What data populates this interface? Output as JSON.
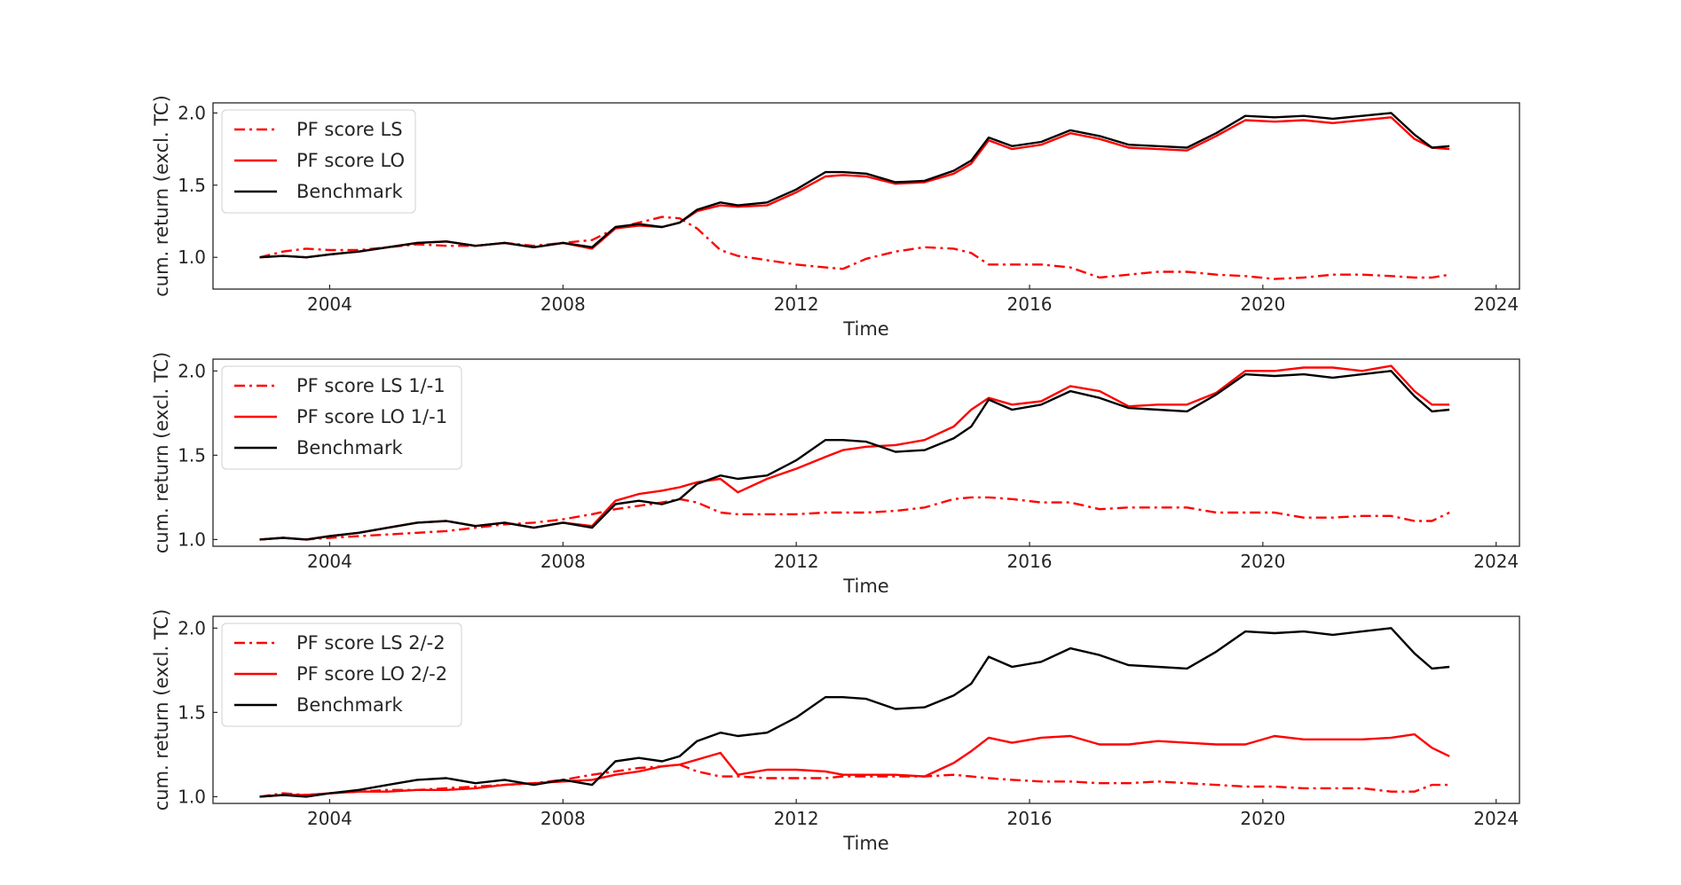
{
  "chart_data": [
    {
      "type": "line",
      "xlabel": "Time",
      "ylabel": "cum. return (excl. TC)",
      "xlim": [
        2002.0,
        2024.4
      ],
      "ylim": [
        0.78,
        2.07
      ],
      "xticks": [
        2004,
        2008,
        2012,
        2016,
        2020,
        2024
      ],
      "yticks": [
        1.0,
        1.5,
        2.0
      ],
      "grid": false,
      "legend": "upper left",
      "series": [
        {
          "name": "PF score LS",
          "color": "#ff0000",
          "style": "dashdot",
          "x": [
            2002.8,
            2003.2,
            2003.6,
            2004.0,
            2004.5,
            2005.0,
            2005.5,
            2006.0,
            2006.5,
            2007.0,
            2007.5,
            2008.0,
            2008.5,
            2008.9,
            2009.3,
            2009.7,
            2010.0,
            2010.3,
            2010.7,
            2011.0,
            2011.5,
            2012.0,
            2012.5,
            2012.8,
            2013.2,
            2013.7,
            2014.2,
            2014.7,
            2015.0,
            2015.3,
            2015.7,
            2016.2,
            2016.7,
            2017.2,
            2017.7,
            2018.2,
            2018.7,
            2019.2,
            2019.7,
            2020.2,
            2020.7,
            2021.2,
            2021.7,
            2022.2,
            2022.6,
            2022.9,
            2023.2
          ],
          "values": [
            1.0,
            1.04,
            1.06,
            1.05,
            1.05,
            1.07,
            1.09,
            1.08,
            1.08,
            1.1,
            1.08,
            1.1,
            1.12,
            1.2,
            1.24,
            1.28,
            1.27,
            1.2,
            1.05,
            1.01,
            0.98,
            0.95,
            0.93,
            0.92,
            0.99,
            1.04,
            1.07,
            1.06,
            1.03,
            0.95,
            0.95,
            0.95,
            0.93,
            0.86,
            0.88,
            0.9,
            0.9,
            0.88,
            0.87,
            0.85,
            0.86,
            0.88,
            0.88,
            0.87,
            0.86,
            0.86,
            0.88
          ]
        },
        {
          "name": "PF score LO",
          "color": "#ff0000",
          "style": "solid",
          "x": [
            2002.8,
            2003.2,
            2003.6,
            2004.0,
            2004.5,
            2005.0,
            2005.5,
            2006.0,
            2006.5,
            2007.0,
            2007.5,
            2008.0,
            2008.5,
            2008.9,
            2009.3,
            2009.7,
            2010.0,
            2010.3,
            2010.7,
            2011.0,
            2011.5,
            2012.0,
            2012.5,
            2012.8,
            2013.2,
            2013.7,
            2014.2,
            2014.7,
            2015.0,
            2015.3,
            2015.7,
            2016.2,
            2016.7,
            2017.2,
            2017.7,
            2018.2,
            2018.7,
            2019.2,
            2019.7,
            2020.2,
            2020.7,
            2021.2,
            2021.7,
            2022.2,
            2022.6,
            2022.9,
            2023.2
          ],
          "values": [
            1.0,
            1.01,
            1.0,
            1.02,
            1.04,
            1.07,
            1.1,
            1.11,
            1.08,
            1.1,
            1.07,
            1.1,
            1.06,
            1.2,
            1.22,
            1.21,
            1.24,
            1.32,
            1.36,
            1.35,
            1.36,
            1.45,
            1.56,
            1.57,
            1.56,
            1.51,
            1.52,
            1.58,
            1.65,
            1.81,
            1.75,
            1.78,
            1.86,
            1.82,
            1.76,
            1.75,
            1.74,
            1.84,
            1.95,
            1.94,
            1.95,
            1.93,
            1.95,
            1.97,
            1.82,
            1.76,
            1.75
          ]
        },
        {
          "name": "Benchmark",
          "color": "#000000",
          "style": "solid",
          "x": [
            2002.8,
            2003.2,
            2003.6,
            2004.0,
            2004.5,
            2005.0,
            2005.5,
            2006.0,
            2006.5,
            2007.0,
            2007.5,
            2008.0,
            2008.5,
            2008.9,
            2009.3,
            2009.7,
            2010.0,
            2010.3,
            2010.7,
            2011.0,
            2011.5,
            2012.0,
            2012.5,
            2012.8,
            2013.2,
            2013.7,
            2014.2,
            2014.7,
            2015.0,
            2015.3,
            2015.7,
            2016.2,
            2016.7,
            2017.2,
            2017.7,
            2018.2,
            2018.7,
            2019.2,
            2019.7,
            2020.2,
            2020.7,
            2021.2,
            2021.7,
            2022.2,
            2022.6,
            2022.9,
            2023.2
          ],
          "values": [
            1.0,
            1.01,
            1.0,
            1.02,
            1.04,
            1.07,
            1.1,
            1.11,
            1.08,
            1.1,
            1.07,
            1.1,
            1.07,
            1.21,
            1.23,
            1.21,
            1.24,
            1.33,
            1.38,
            1.36,
            1.38,
            1.47,
            1.59,
            1.59,
            1.58,
            1.52,
            1.53,
            1.6,
            1.67,
            1.83,
            1.77,
            1.8,
            1.88,
            1.84,
            1.78,
            1.77,
            1.76,
            1.86,
            1.98,
            1.97,
            1.98,
            1.96,
            1.98,
            2.0,
            1.85,
            1.76,
            1.77
          ]
        }
      ]
    },
    {
      "type": "line",
      "xlabel": "Time",
      "ylabel": "cum. return (excl. TC)",
      "xlim": [
        2002.0,
        2024.4
      ],
      "ylim": [
        0.96,
        2.07
      ],
      "xticks": [
        2004,
        2008,
        2012,
        2016,
        2020,
        2024
      ],
      "yticks": [
        1.0,
        1.5,
        2.0
      ],
      "grid": false,
      "legend": "upper left",
      "series": [
        {
          "name": "PF score LS 1/-1",
          "color": "#ff0000",
          "style": "dashdot",
          "x": [
            2002.8,
            2003.2,
            2003.6,
            2004.0,
            2004.5,
            2005.0,
            2005.5,
            2006.0,
            2006.5,
            2007.0,
            2007.5,
            2008.0,
            2008.5,
            2008.9,
            2009.3,
            2009.7,
            2010.0,
            2010.3,
            2010.7,
            2011.0,
            2011.5,
            2012.0,
            2012.5,
            2012.8,
            2013.2,
            2013.7,
            2014.2,
            2014.7,
            2015.0,
            2015.3,
            2015.7,
            2016.2,
            2016.7,
            2017.2,
            2017.7,
            2018.2,
            2018.7,
            2019.2,
            2019.7,
            2020.2,
            2020.7,
            2021.2,
            2021.7,
            2022.2,
            2022.6,
            2022.9,
            2023.2
          ],
          "values": [
            1.0,
            1.01,
            1.0,
            1.01,
            1.02,
            1.03,
            1.04,
            1.05,
            1.07,
            1.09,
            1.1,
            1.12,
            1.15,
            1.18,
            1.2,
            1.22,
            1.24,
            1.22,
            1.16,
            1.15,
            1.15,
            1.15,
            1.16,
            1.16,
            1.16,
            1.17,
            1.19,
            1.24,
            1.25,
            1.25,
            1.24,
            1.22,
            1.22,
            1.18,
            1.19,
            1.19,
            1.19,
            1.16,
            1.16,
            1.16,
            1.13,
            1.13,
            1.14,
            1.14,
            1.11,
            1.11,
            1.16
          ]
        },
        {
          "name": "PF score LO 1/-1",
          "color": "#ff0000",
          "style": "solid",
          "x": [
            2002.8,
            2003.2,
            2003.6,
            2004.0,
            2004.5,
            2005.0,
            2005.5,
            2006.0,
            2006.5,
            2007.0,
            2007.5,
            2008.0,
            2008.5,
            2008.9,
            2009.3,
            2009.7,
            2010.0,
            2010.3,
            2010.7,
            2011.0,
            2011.5,
            2012.0,
            2012.5,
            2012.8,
            2013.2,
            2013.7,
            2014.2,
            2014.7,
            2015.0,
            2015.3,
            2015.7,
            2016.2,
            2016.7,
            2017.2,
            2017.7,
            2018.2,
            2018.7,
            2019.2,
            2019.7,
            2020.2,
            2020.7,
            2021.2,
            2021.7,
            2022.2,
            2022.6,
            2022.9,
            2023.2
          ],
          "values": [
            1.0,
            1.01,
            1.0,
            1.02,
            1.04,
            1.07,
            1.1,
            1.11,
            1.08,
            1.1,
            1.07,
            1.1,
            1.08,
            1.23,
            1.27,
            1.29,
            1.31,
            1.34,
            1.36,
            1.28,
            1.36,
            1.42,
            1.49,
            1.53,
            1.55,
            1.56,
            1.59,
            1.67,
            1.77,
            1.84,
            1.8,
            1.82,
            1.91,
            1.88,
            1.79,
            1.8,
            1.8,
            1.87,
            2.0,
            2.0,
            2.02,
            2.02,
            2.0,
            2.03,
            1.88,
            1.8,
            1.8
          ]
        },
        {
          "name": "Benchmark",
          "color": "#000000",
          "style": "solid",
          "x": [
            2002.8,
            2003.2,
            2003.6,
            2004.0,
            2004.5,
            2005.0,
            2005.5,
            2006.0,
            2006.5,
            2007.0,
            2007.5,
            2008.0,
            2008.5,
            2008.9,
            2009.3,
            2009.7,
            2010.0,
            2010.3,
            2010.7,
            2011.0,
            2011.5,
            2012.0,
            2012.5,
            2012.8,
            2013.2,
            2013.7,
            2014.2,
            2014.7,
            2015.0,
            2015.3,
            2015.7,
            2016.2,
            2016.7,
            2017.2,
            2017.7,
            2018.2,
            2018.7,
            2019.2,
            2019.7,
            2020.2,
            2020.7,
            2021.2,
            2021.7,
            2022.2,
            2022.6,
            2022.9,
            2023.2
          ],
          "values": [
            1.0,
            1.01,
            1.0,
            1.02,
            1.04,
            1.07,
            1.1,
            1.11,
            1.08,
            1.1,
            1.07,
            1.1,
            1.07,
            1.21,
            1.23,
            1.21,
            1.24,
            1.33,
            1.38,
            1.36,
            1.38,
            1.47,
            1.59,
            1.59,
            1.58,
            1.52,
            1.53,
            1.6,
            1.67,
            1.83,
            1.77,
            1.8,
            1.88,
            1.84,
            1.78,
            1.77,
            1.76,
            1.86,
            1.98,
            1.97,
            1.98,
            1.96,
            1.98,
            2.0,
            1.85,
            1.76,
            1.77
          ]
        }
      ]
    },
    {
      "type": "line",
      "xlabel": "Time",
      "ylabel": "cum. return (excl. TC)",
      "xlim": [
        2002.0,
        2024.4
      ],
      "ylim": [
        0.96,
        2.07
      ],
      "xticks": [
        2004,
        2008,
        2012,
        2016,
        2020,
        2024
      ],
      "yticks": [
        1.0,
        1.5,
        2.0
      ],
      "grid": false,
      "legend": "upper left",
      "series": [
        {
          "name": "PF score LS 2/-2",
          "color": "#ff0000",
          "style": "dashdot",
          "x": [
            2002.8,
            2003.2,
            2003.6,
            2004.0,
            2004.5,
            2005.0,
            2005.5,
            2006.0,
            2006.5,
            2007.0,
            2007.5,
            2008.0,
            2008.5,
            2008.9,
            2009.3,
            2009.7,
            2010.0,
            2010.3,
            2010.7,
            2011.0,
            2011.5,
            2012.0,
            2012.5,
            2012.8,
            2013.2,
            2013.7,
            2014.2,
            2014.7,
            2015.0,
            2015.3,
            2015.7,
            2016.2,
            2016.7,
            2017.2,
            2017.7,
            2018.2,
            2018.7,
            2019.2,
            2019.7,
            2020.2,
            2020.7,
            2021.2,
            2021.7,
            2022.2,
            2022.6,
            2022.9,
            2023.2
          ],
          "values": [
            1.0,
            1.02,
            1.01,
            1.02,
            1.03,
            1.04,
            1.04,
            1.05,
            1.06,
            1.07,
            1.08,
            1.1,
            1.13,
            1.15,
            1.17,
            1.18,
            1.19,
            1.15,
            1.12,
            1.12,
            1.11,
            1.11,
            1.11,
            1.12,
            1.12,
            1.12,
            1.12,
            1.13,
            1.12,
            1.11,
            1.1,
            1.09,
            1.09,
            1.08,
            1.08,
            1.09,
            1.08,
            1.07,
            1.06,
            1.06,
            1.05,
            1.05,
            1.05,
            1.03,
            1.03,
            1.07,
            1.07
          ]
        },
        {
          "name": "PF score LO 2/-2",
          "color": "#ff0000",
          "style": "solid",
          "x": [
            2002.8,
            2003.2,
            2003.6,
            2004.0,
            2004.5,
            2005.0,
            2005.5,
            2006.0,
            2006.5,
            2007.0,
            2007.5,
            2008.0,
            2008.5,
            2008.9,
            2009.3,
            2009.7,
            2010.0,
            2010.3,
            2010.7,
            2011.0,
            2011.5,
            2012.0,
            2012.5,
            2012.8,
            2013.2,
            2013.7,
            2014.2,
            2014.7,
            2015.0,
            2015.3,
            2015.7,
            2016.2,
            2016.7,
            2017.2,
            2017.7,
            2018.2,
            2018.7,
            2019.2,
            2019.7,
            2020.2,
            2020.7,
            2021.2,
            2021.7,
            2022.2,
            2022.6,
            2022.9,
            2023.2
          ],
          "values": [
            1.0,
            1.01,
            1.01,
            1.02,
            1.03,
            1.03,
            1.04,
            1.04,
            1.05,
            1.07,
            1.08,
            1.09,
            1.1,
            1.13,
            1.15,
            1.18,
            1.19,
            1.22,
            1.26,
            1.13,
            1.16,
            1.16,
            1.15,
            1.13,
            1.13,
            1.13,
            1.12,
            1.2,
            1.27,
            1.35,
            1.32,
            1.35,
            1.36,
            1.31,
            1.31,
            1.33,
            1.32,
            1.31,
            1.31,
            1.36,
            1.34,
            1.34,
            1.34,
            1.35,
            1.37,
            1.29,
            1.24
          ]
        },
        {
          "name": "Benchmark",
          "color": "#000000",
          "style": "solid",
          "x": [
            2002.8,
            2003.2,
            2003.6,
            2004.0,
            2004.5,
            2005.0,
            2005.5,
            2006.0,
            2006.5,
            2007.0,
            2007.5,
            2008.0,
            2008.5,
            2008.9,
            2009.3,
            2009.7,
            2010.0,
            2010.3,
            2010.7,
            2011.0,
            2011.5,
            2012.0,
            2012.5,
            2012.8,
            2013.2,
            2013.7,
            2014.2,
            2014.7,
            2015.0,
            2015.3,
            2015.7,
            2016.2,
            2016.7,
            2017.2,
            2017.7,
            2018.2,
            2018.7,
            2019.2,
            2019.7,
            2020.2,
            2020.7,
            2021.2,
            2021.7,
            2022.2,
            2022.6,
            2022.9,
            2023.2
          ],
          "values": [
            1.0,
            1.01,
            1.0,
            1.02,
            1.04,
            1.07,
            1.1,
            1.11,
            1.08,
            1.1,
            1.07,
            1.1,
            1.07,
            1.21,
            1.23,
            1.21,
            1.24,
            1.33,
            1.38,
            1.36,
            1.38,
            1.47,
            1.59,
            1.59,
            1.58,
            1.52,
            1.53,
            1.6,
            1.67,
            1.83,
            1.77,
            1.8,
            1.88,
            1.84,
            1.78,
            1.77,
            1.76,
            1.86,
            1.98,
            1.97,
            1.98,
            1.96,
            1.98,
            2.0,
            1.85,
            1.76,
            1.77
          ]
        }
      ]
    }
  ]
}
